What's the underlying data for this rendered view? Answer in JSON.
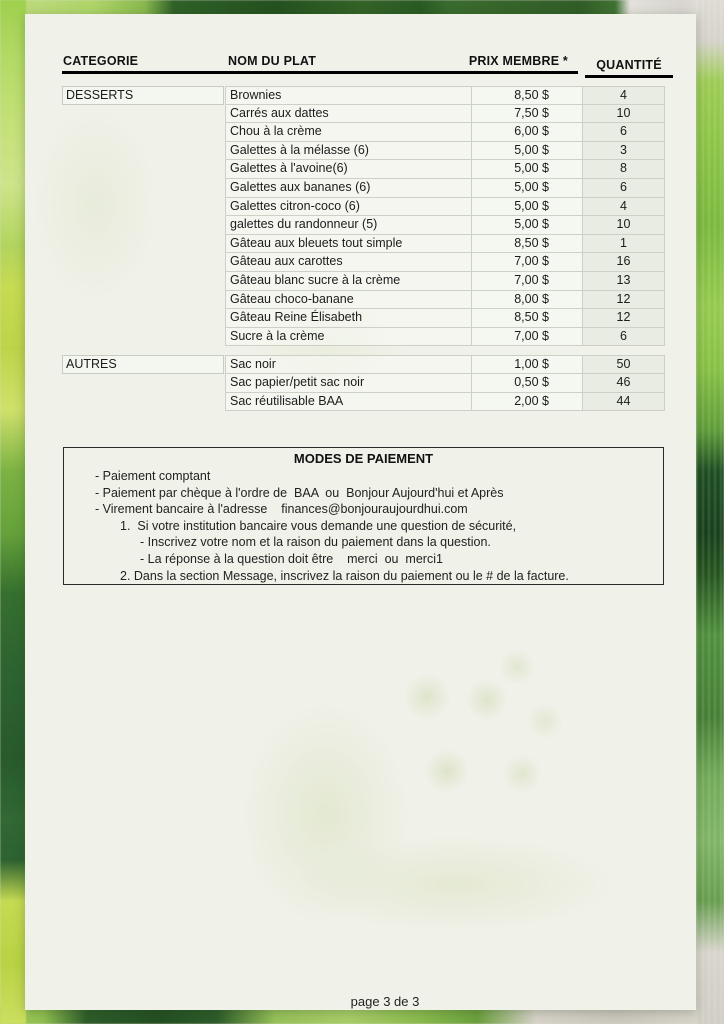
{
  "table": {
    "headers": {
      "category": "CATEGORIE",
      "dish": "NOM DU PLAT",
      "price": "PRIX MEMBRE *",
      "quantity": "QUANTITÉ"
    },
    "sections": [
      {
        "category": "DESSERTS",
        "rows": [
          {
            "dish": "Brownies",
            "price": "8,50 $",
            "quantity": "4"
          },
          {
            "dish": "Carrés aux dattes",
            "price": "7,50 $",
            "quantity": "10"
          },
          {
            "dish": "Chou à la crème",
            "price": "6,00 $",
            "quantity": "6"
          },
          {
            "dish": "Galettes à la mélasse (6)",
            "price": "5,00 $",
            "quantity": "3"
          },
          {
            "dish": "Galettes à l'avoine(6)",
            "price": "5,00 $",
            "quantity": "8"
          },
          {
            "dish": "Galettes aux bananes (6)",
            "price": "5,00 $",
            "quantity": "6"
          },
          {
            "dish": "Galettes citron-coco (6)",
            "price": "5,00 $",
            "quantity": "4"
          },
          {
            "dish": "galettes du randonneur (5)",
            "price": "5,00 $",
            "quantity": "10"
          },
          {
            "dish": "Gâteau aux bleuets tout simple",
            "price": "8,50 $",
            "quantity": "1"
          },
          {
            "dish": "Gâteau aux carottes",
            "price": "7,00 $",
            "quantity": "16"
          },
          {
            "dish": "Gâteau blanc sucre à la crème",
            "price": "7,00 $",
            "quantity": "13"
          },
          {
            "dish": "Gâteau choco-banane",
            "price": "8,00 $",
            "quantity": "12"
          },
          {
            "dish": "Gâteau Reine Élisabeth",
            "price": "8,50 $",
            "quantity": "12"
          },
          {
            "dish": "Sucre à la crème",
            "price": "7,00 $",
            "quantity": "6"
          }
        ]
      },
      {
        "category": "AUTRES",
        "rows": [
          {
            "dish": "Sac noir",
            "price": "1,00 $",
            "quantity": "50"
          },
          {
            "dish": "Sac papier/petit sac noir",
            "price": "0,50 $",
            "quantity": "46"
          },
          {
            "dish": "Sac réutilisable BAA",
            "price": "2,00 $",
            "quantity": "44"
          }
        ]
      }
    ]
  },
  "payment_box": {
    "title": "MODES DE PAIEMENT",
    "lines": [
      {
        "indent": "1",
        "text": "- Paiement comptant"
      },
      {
        "indent": "1",
        "text": "- Paiement par chèque à l'ordre de  BAA  ou  Bonjour Aujourd'hui et Après"
      },
      {
        "indent": "1",
        "text": "- Virement bancaire à l'adresse    finances@bonjouraujourdhui.com"
      },
      {
        "indent": "2",
        "text": "1.  Si votre institution bancaire vous demande une question de sécurité,"
      },
      {
        "indent": "3",
        "text": "- Inscrivez votre nom et la raison du paiement dans la question."
      },
      {
        "indent": "3",
        "text": "- La réponse à la question doit être    merci  ou  merci1"
      },
      {
        "indent": "2",
        "text": "2. Dans la section Message, inscrivez la raison du paiement ou le # de la facture."
      }
    ]
  },
  "footer": {
    "page_label": "page 3 de 3"
  }
}
